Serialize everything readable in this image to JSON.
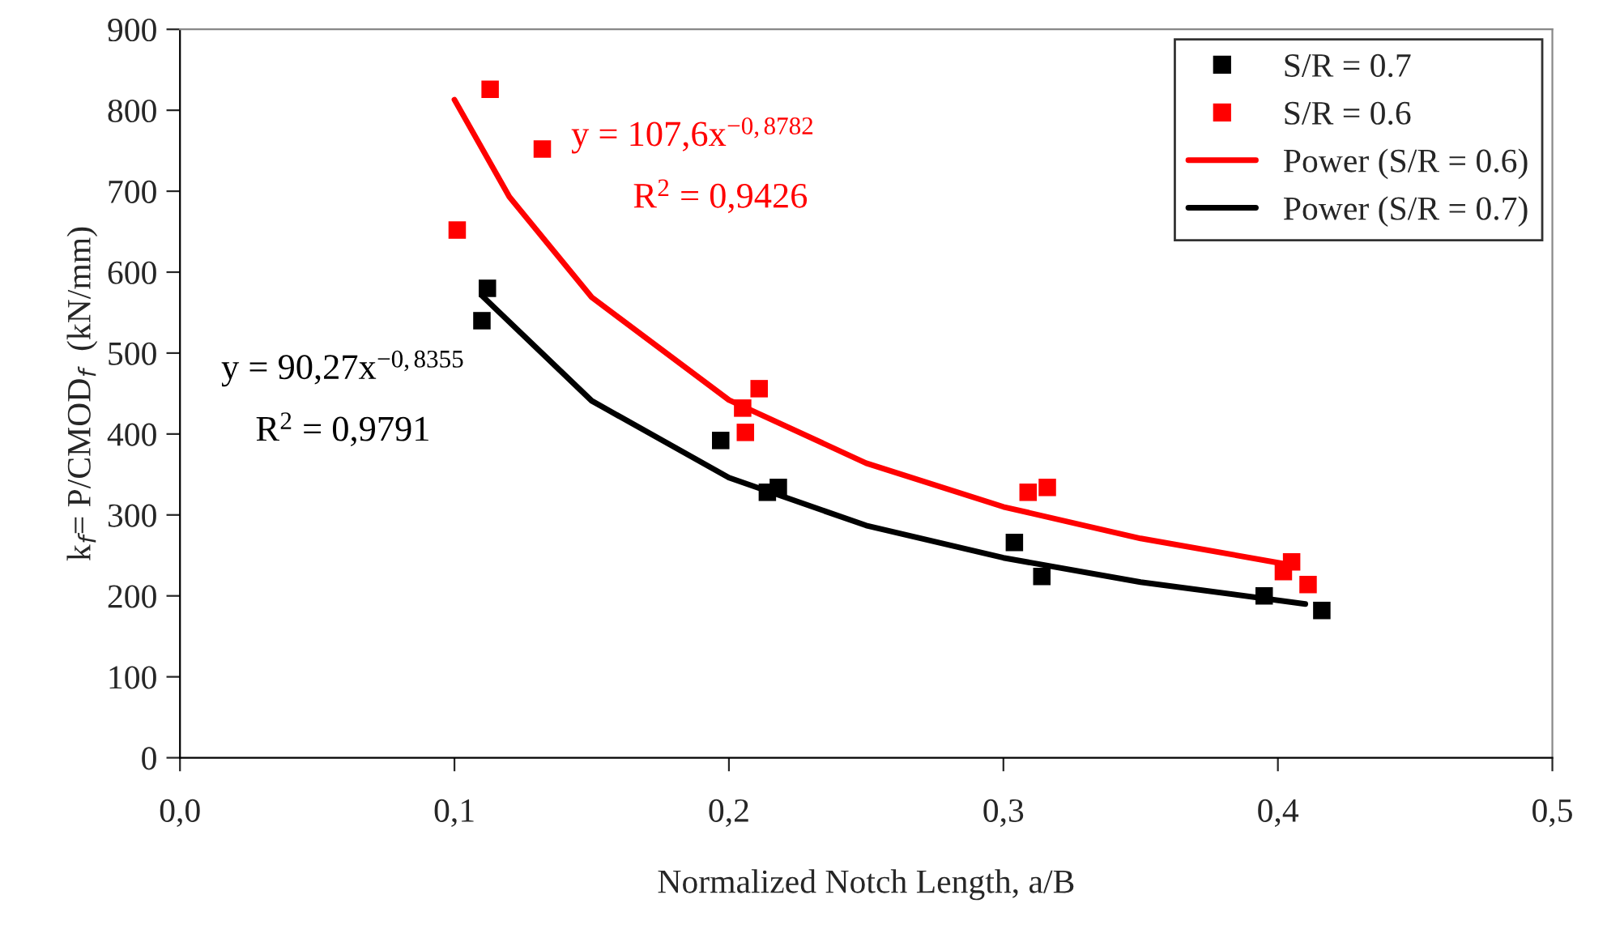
{
  "chart_data": {
    "type": "scatter",
    "xlabel": "Normalized Notch Length, a/B",
    "ylabel": "k$_{f}$= P/CMOD$_{f}$  (kN/mm)",
    "series": [
      {
        "name": "S/R = 0.7",
        "marker": "square",
        "color": "#000000",
        "x": [
          0.11,
          0.112,
          0.197,
          0.214,
          0.218,
          0.304,
          0.314,
          0.395,
          0.416
        ],
        "values": [
          540,
          580,
          392,
          328,
          334,
          266,
          224,
          200,
          182
        ]
      },
      {
        "name": "S/R = 0.6",
        "marker": "square",
        "color": "#ff0000",
        "x": [
          0.101,
          0.113,
          0.132,
          0.205,
          0.206,
          0.211,
          0.309,
          0.316,
          0.402,
          0.405,
          0.411
        ],
        "values": [
          652,
          826,
          752,
          432,
          402,
          456,
          328,
          334,
          230,
          242,
          214
        ]
      },
      {
        "name": "Power (S/R = 0.6)",
        "type": "line",
        "color": "#ff0000",
        "x": [
          0.1,
          0.12,
          0.15,
          0.2,
          0.25,
          0.3,
          0.35,
          0.405
        ],
        "values": [
          813,
          693,
          569,
          442,
          364,
          310,
          271,
          238
        ]
      },
      {
        "name": "Power (S/R = 0.7)",
        "type": "line",
        "color": "#000000",
        "x": [
          0.11,
          0.15,
          0.2,
          0.25,
          0.3,
          0.35,
          0.41
        ],
        "values": [
          571,
          441,
          346,
          287,
          247,
          217,
          190
        ]
      }
    ],
    "annotations": [
      "y = 107,6x$^{−0,8782}$",
      "R$^{2}$ = 0,9426",
      "y = 90,27x$^{−0,8355}$",
      "R$^{2}$ = 0,9791"
    ],
    "xlim": [
      0,
      0.5
    ],
    "xticks": [
      {
        "value": 0,
        "label": "0,0"
      },
      {
        "value": 0.1,
        "label": "0,1"
      },
      {
        "value": 0.2,
        "label": "0,2"
      },
      {
        "value": 0.3,
        "label": "0,3"
      },
      {
        "value": 0.4,
        "label": "0,4"
      },
      {
        "value": 0.5,
        "label": "0,5"
      }
    ],
    "ylim": [
      0,
      900
    ],
    "yticks": [
      0,
      100,
      200,
      300,
      400,
      500,
      600,
      700,
      800,
      900
    ],
    "legend": "top right",
    "grid": false
  }
}
